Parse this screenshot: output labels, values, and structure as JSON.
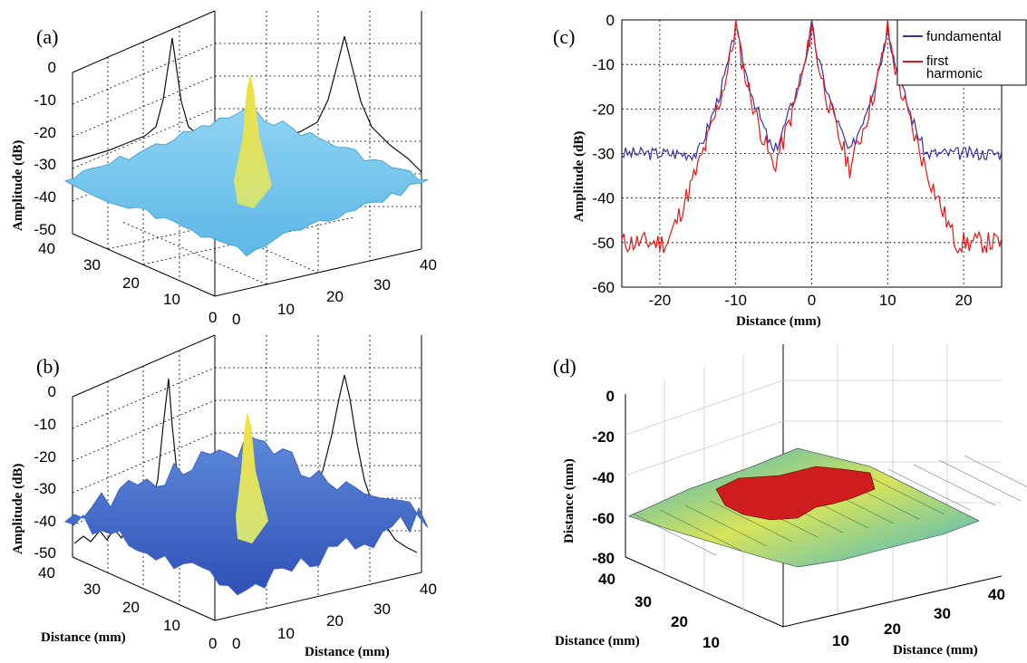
{
  "chart_data": [
    {
      "panel": "(a)",
      "type": "area",
      "kind": "3d-surface",
      "title": "",
      "zlabel": "Amplitude (dB)",
      "xlabel": "",
      "ylabel": "",
      "z_ticks": [
        "0",
        "-10",
        "-20",
        "-30",
        "-40",
        "-50"
      ],
      "x_ticks": [
        "0",
        "10",
        "20",
        "30",
        "40"
      ],
      "y_ticks": [
        "0",
        "10",
        "20",
        "30",
        "40"
      ],
      "zlim": [
        -50,
        0
      ],
      "xlim": [
        0,
        40
      ],
      "ylim": [
        0,
        40
      ],
      "peak_value": -5,
      "floor_value": -30,
      "projection_peak": 0,
      "colormap": [
        "#6fc6ef",
        "#f3e04a"
      ]
    },
    {
      "panel": "(b)",
      "type": "area",
      "kind": "3d-surface",
      "title": "",
      "zlabel": "Amplitude (dB)",
      "xlabel": "Distance (mm)",
      "ylabel": "Distance (mm)",
      "z_ticks": [
        "0",
        "-10",
        "-20",
        "-30",
        "-40",
        "-50"
      ],
      "x_ticks": [
        "0",
        "10",
        "20",
        "30",
        "40"
      ],
      "y_ticks": [
        "0",
        "10",
        "20",
        "30",
        "40"
      ],
      "zlim": [
        -50,
        0
      ],
      "xlim": [
        0,
        40
      ],
      "ylim": [
        0,
        40
      ],
      "peak_value": -5,
      "floor_value": -45,
      "projection_peak": 0,
      "colormap": [
        "#3f62c9",
        "#f3e04a"
      ]
    },
    {
      "panel": "(c)",
      "type": "line",
      "title": "",
      "xlabel": "Distance (mm)",
      "ylabel": "Amplitude (dB)",
      "xlim": [
        -25,
        25
      ],
      "ylim": [
        -60,
        0
      ],
      "x_ticks": [
        "-20",
        "-10",
        "0",
        "10",
        "20"
      ],
      "y_ticks": [
        "0",
        "-10",
        "-20",
        "-30",
        "-40",
        "-50",
        "-60"
      ],
      "grid": true,
      "legend": "top-right",
      "series": [
        {
          "name": "fundamental",
          "color": "#3b2fa3",
          "peaks_x": [
            -10,
            0,
            10
          ],
          "peak_y": 0,
          "floor_y": -30
        },
        {
          "name": "first harmonic",
          "color": "#e01818",
          "peaks_x": [
            -10,
            0,
            10
          ],
          "peak_y": 0,
          "floor_y": -50
        }
      ]
    },
    {
      "panel": "(d)",
      "type": "area",
      "kind": "3d-surface",
      "title": "",
      "zlabel": "Distance (mm)",
      "xlabel": "Distance (mm)",
      "ylabel": "Distance (mm)",
      "z_ticks": [
        "0",
        "-20",
        "-40",
        "-60",
        "-80"
      ],
      "x_ticks": [
        "10",
        "20",
        "30",
        "40"
      ],
      "y_ticks": [
        "10",
        "20",
        "30",
        "40"
      ],
      "zlim": [
        -80,
        0
      ],
      "xlim": [
        0,
        40
      ],
      "ylim": [
        0,
        40
      ],
      "colormap": [
        "#2fa7c9",
        "#f2e24d",
        "#d11a1a"
      ]
    }
  ]
}
